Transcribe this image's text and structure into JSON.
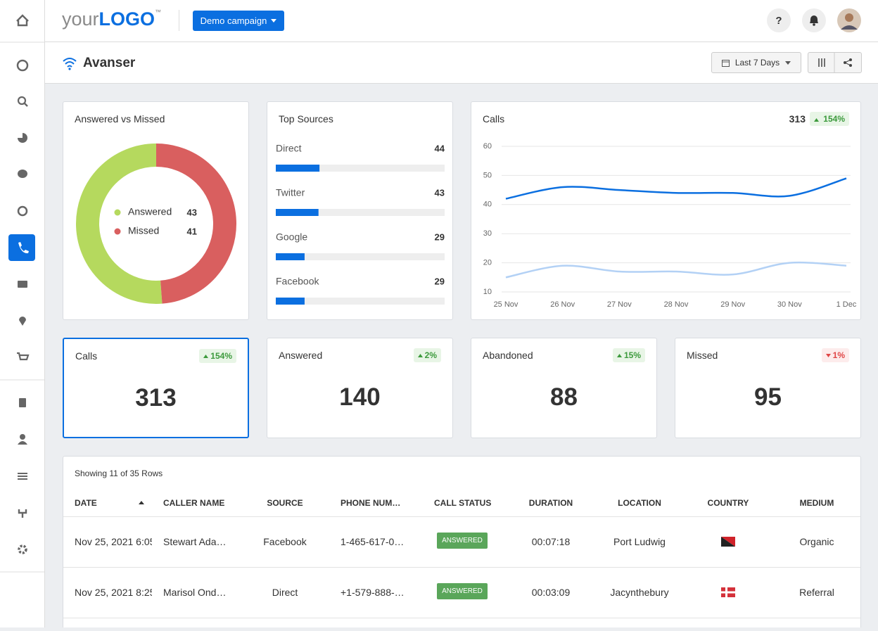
{
  "header": {
    "logo_plain": "your",
    "logo_bold": "LOGO",
    "logo_tm": "™",
    "campaign": "Demo campaign"
  },
  "page": {
    "title": "Avanser",
    "date_range": "Last 7 Days"
  },
  "chart_data": [
    {
      "type": "pie",
      "title": "Answered vs Missed",
      "categories": [
        "Answered",
        "Missed"
      ],
      "values": [
        43,
        41
      ],
      "colors": [
        "#b5d95e",
        "#d95f5f"
      ]
    },
    {
      "type": "hbar",
      "title": "Top Sources",
      "categories": [
        "Direct",
        "Twitter",
        "Google",
        "Facebook"
      ],
      "values": [
        44,
        43,
        29,
        29
      ],
      "color": "#0b6fe0",
      "xlim": [
        0,
        170
      ]
    },
    {
      "type": "line",
      "title": "Calls",
      "total": 313,
      "change": "154%",
      "change_direction": "up",
      "categories": [
        "25 Nov",
        "26 Nov",
        "27 Nov",
        "28 Nov",
        "29 Nov",
        "30 Nov",
        "1 Dec"
      ],
      "series": [
        {
          "color": "#0b6fe0",
          "values": [
            42,
            46,
            45,
            44,
            44,
            43,
            49
          ]
        },
        {
          "color": "#b3d1f5",
          "values": [
            15,
            19,
            17,
            17,
            16,
            20,
            19
          ]
        }
      ],
      "ylim": [
        10,
        60
      ],
      "yticks": [
        10,
        20,
        30,
        40,
        50,
        60
      ],
      "grid": true
    }
  ],
  "kpis": [
    {
      "label": "Calls",
      "value": 313,
      "change": "154%",
      "direction": "up"
    },
    {
      "label": "Answered",
      "value": 140,
      "change": "2%",
      "direction": "up"
    },
    {
      "label": "Abandoned",
      "value": 88,
      "change": "15%",
      "direction": "up"
    },
    {
      "label": "Missed",
      "value": 95,
      "change": "1%",
      "direction": "down"
    }
  ],
  "table": {
    "summary": "Showing 11 of 35 Rows",
    "columns": [
      "DATE",
      "CALLER NAME",
      "SOURCE",
      "PHONE NUM…",
      "CALL STATUS",
      "DURATION",
      "LOCATION",
      "COUNTRY",
      "MEDIUM"
    ],
    "rows": [
      {
        "date": "Nov 25, 2021 6:05",
        "caller": "Stewart Ada…",
        "source": "Facebook",
        "phone": "1-465-617-0…",
        "status": "ANSWERED",
        "duration": "00:07:18",
        "location": "Port Ludwig",
        "medium": "Organic"
      },
      {
        "date": "Nov 25, 2021 8:25",
        "caller": "Marisol Ond…",
        "source": "Direct",
        "phone": "+1-579-888-…",
        "status": "ANSWERED",
        "duration": "00:03:09",
        "location": "Jacynthebury",
        "medium": "Referral"
      }
    ]
  }
}
